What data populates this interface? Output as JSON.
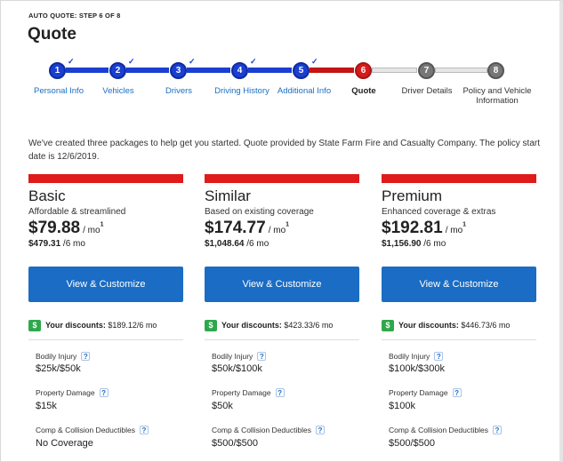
{
  "header": {
    "step_label": "AUTO QUOTE: STEP 6 OF 8",
    "title": "Quote"
  },
  "stepper": {
    "steps": [
      {
        "number": "1",
        "label": "Personal Info",
        "state": "done"
      },
      {
        "number": "2",
        "label": "Vehicles",
        "state": "done"
      },
      {
        "number": "3",
        "label": "Drivers",
        "state": "done"
      },
      {
        "number": "4",
        "label": "Driving History",
        "state": "done"
      },
      {
        "number": "5",
        "label": "Additional Info",
        "state": "done"
      },
      {
        "number": "6",
        "label": "Quote",
        "state": "current"
      },
      {
        "number": "7",
        "label": "Driver Details",
        "state": "future"
      },
      {
        "number": "8",
        "label": "Policy and Vehicle Information",
        "state": "future"
      }
    ],
    "check_mark": "✓"
  },
  "intro": "We've created three packages to help get you started. Quote provided by State Farm Fire and Casualty Company. The policy start date is 12/6/2019.",
  "colors": {
    "accent_red": "#e01b1b",
    "step_done": "#1a3fd1",
    "button_blue": "#1a6cc4",
    "discount_green": "#2ea84a"
  },
  "packages": [
    {
      "name": "Basic",
      "description": "Affordable & streamlined",
      "price": "$79.88",
      "per_mo": "/ mo",
      "footnote": "1",
      "six_mo_price": "$479.31",
      "six_mo_suffix": " /6 mo",
      "button": "View & Customize",
      "discount_label": "Your discounts:",
      "discount_value": " $189.12/6 mo",
      "coverages": [
        {
          "label": "Bodily Injury",
          "value": "$25k/$50k"
        },
        {
          "label": "Property Damage",
          "value": "$15k"
        },
        {
          "label": "Comp & Collision Deductibles",
          "value": "No Coverage"
        }
      ]
    },
    {
      "name": "Similar",
      "description": "Based on existing coverage",
      "price": "$174.77",
      "per_mo": "/ mo",
      "footnote": "1",
      "six_mo_price": "$1,048.64",
      "six_mo_suffix": " /6 mo",
      "button": "View & Customize",
      "discount_label": "Your discounts:",
      "discount_value": " $423.33/6 mo",
      "coverages": [
        {
          "label": "Bodily Injury",
          "value": "$50k/$100k"
        },
        {
          "label": "Property Damage",
          "value": "$50k"
        },
        {
          "label": "Comp & Collision Deductibles",
          "value": "$500/$500"
        }
      ]
    },
    {
      "name": "Premium",
      "description": "Enhanced coverage & extras",
      "price": "$192.81",
      "per_mo": "/ mo",
      "footnote": "1",
      "six_mo_price": "$1,156.90",
      "six_mo_suffix": " /6 mo",
      "button": "View & Customize",
      "discount_label": "Your discounts:",
      "discount_value": " $446.73/6 mo",
      "coverages": [
        {
          "label": "Bodily Injury",
          "value": "$100k/$300k"
        },
        {
          "label": "Property Damage",
          "value": "$100k"
        },
        {
          "label": "Comp & Collision Deductibles",
          "value": "$500/$500"
        }
      ]
    }
  ],
  "help_glyph": "?",
  "dollar_glyph": "$"
}
